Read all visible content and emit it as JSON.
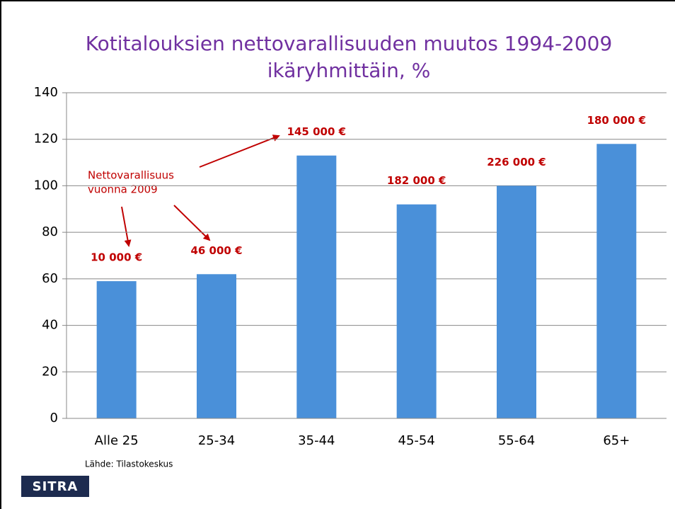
{
  "chart_data": {
    "type": "bar",
    "title": [
      "Kotitalouksien nettovarallisuuden muutos 1994-2009",
      "ikäryhmittäin, %"
    ],
    "categories": [
      "Alle 25",
      "25-34",
      "35-44",
      "45-54",
      "55-64",
      "65+"
    ],
    "values": [
      59,
      62,
      113,
      92,
      100,
      118
    ],
    "color": "#4a90d9",
    "ylim": [
      0,
      140
    ],
    "yticks": [
      0,
      20,
      40,
      60,
      80,
      100,
      120,
      140
    ],
    "grid": true,
    "net_worth_labels": [
      "10 000 €",
      "46 000 €",
      "145 000 €",
      "182 000 €",
      "226 000 €",
      "180 000 €"
    ],
    "annotation": [
      "Nettovarallisuus",
      "vuonna 2009"
    ],
    "source": "Lähde: Tilastokeskus"
  },
  "logo": "SITRA"
}
